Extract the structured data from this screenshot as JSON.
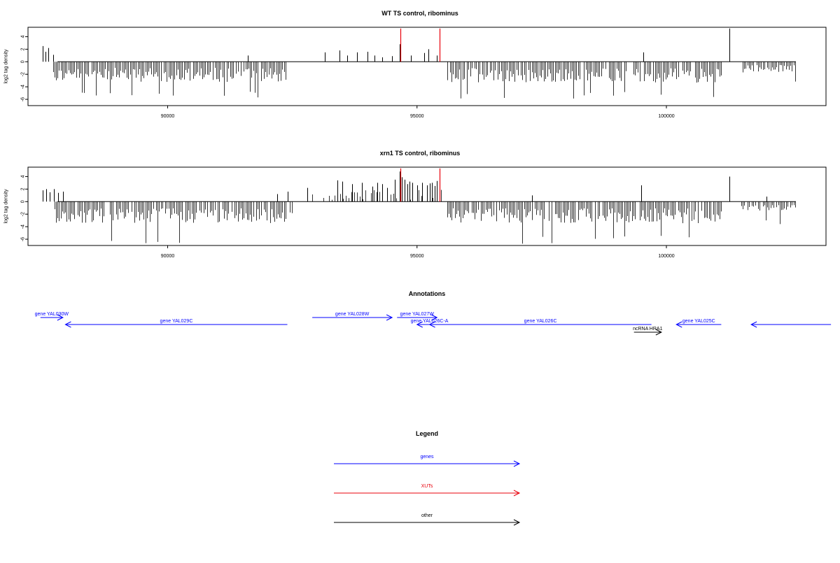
{
  "chart_data": [
    {
      "type": "bar",
      "title": "WT TS control, ribominus",
      "ylabel": "log2 tag density",
      "xlabel": "",
      "xlim": [
        87200,
        103200
      ],
      "ylim": [
        -7,
        5.5
      ],
      "x_ticks": [
        90000,
        95000,
        100000
      ],
      "y_ticks": [
        4,
        2,
        0,
        -2,
        -4,
        -6
      ],
      "grid": false,
      "series": [
        {
          "color": "#000000",
          "pos_x": [
            87500,
            87550,
            87600,
            87700,
            93150,
            93450,
            93600,
            93800,
            94000,
            94150,
            94500,
            94650,
            94880,
            95150,
            95230,
            95400,
            99540,
            101270,
            91600,
            94300
          ],
          "pos_y": [
            2.5,
            1.6,
            2.2,
            1.1,
            1.5,
            1.8,
            1.0,
            1.5,
            1.6,
            1.0,
            0.9,
            2.8,
            1.0,
            1.4,
            2.0,
            1.0,
            1.5,
            5.3,
            1.0,
            0.7
          ]
        },
        {
          "color": "#e8000b",
          "name": "",
          "pos_x": [
            94660,
            95450
          ],
          "pos_y": [
            5.3,
            5.3
          ]
        }
      ],
      "neg_regions": [
        [
          87700,
          92400,
          -2.8,
          -5.8
        ],
        [
          95600,
          101100,
          -2.9,
          -5.9
        ],
        [
          101500,
          102600,
          -1.5,
          -3.5
        ]
      ]
    },
    {
      "type": "bar",
      "title": "xrn1 TS control, ribominus",
      "ylabel": "log2 tag density",
      "xlabel": "",
      "xlim": [
        87200,
        103200
      ],
      "ylim": [
        -7,
        5.5
      ],
      "x_ticks": [
        90000,
        95000,
        100000
      ],
      "y_ticks": [
        4,
        2,
        0,
        -2,
        -4,
        -6
      ],
      "grid": false,
      "series": [
        {
          "color": "#000000",
          "pos_x": [
            87500,
            87560,
            87640,
            87720,
            87800,
            87900,
            92200,
            92400,
            92400,
            92800,
            93400,
            93500,
            93700,
            93900,
            94100,
            94200,
            94300,
            94400,
            94550,
            94650,
            94700,
            94750,
            94800,
            94850,
            94900,
            95000,
            95100,
            95200,
            95250,
            95300,
            95350,
            95400,
            95450,
            97300,
            99500,
            101270,
            102000
          ],
          "pos_y": [
            1.8,
            2.0,
            1.5,
            2.0,
            1.4,
            1.6,
            1.2,
            1.0,
            1.6,
            2.2,
            3.4,
            3.2,
            2.8,
            3.0,
            2.4,
            3.0,
            2.8,
            2.2,
            3.5,
            4.8,
            3.9,
            3.5,
            2.8,
            3.2,
            3.0,
            2.6,
            3.0,
            2.6,
            2.9,
            3.0,
            2.5,
            3.3,
            1.8,
            1.0,
            2.6,
            4.0,
            0.8
          ]
        },
        {
          "color": "#e8000b",
          "name": "",
          "pos_x": [
            94660,
            95450
          ],
          "pos_y": [
            5.3,
            5.3
          ]
        }
      ],
      "neg_regions": [
        [
          87700,
          92500,
          -3.0,
          -6.8
        ],
        [
          95600,
          101100,
          -3.0,
          -6.8
        ],
        [
          101500,
          102600,
          -1.4,
          -3.6
        ]
      ]
    }
  ],
  "annotations": {
    "title": "Annotations",
    "xlim": [
      87200,
      103200
    ],
    "features": [
      {
        "label": "gene YAL030W",
        "start": 87450,
        "end": 87900,
        "strand": "+",
        "row": 0,
        "color": "#0000ff"
      },
      {
        "label": "gene YAL029C",
        "start": 87950,
        "end": 92400,
        "strand": "-",
        "row": 1,
        "color": "#0000ff"
      },
      {
        "label": "gene YAL028W",
        "start": 92900,
        "end": 94500,
        "strand": "+",
        "row": 0,
        "color": "#0000ff"
      },
      {
        "label": "gene YAL027W",
        "start": 94600,
        "end": 95400,
        "strand": "+",
        "row": 0,
        "color": "#0000ff"
      },
      {
        "label": "gene YAL026C-A",
        "start": 95000,
        "end": 95500,
        "strand": "-",
        "row": 1,
        "color": "#0000ff"
      },
      {
        "label": "gene YAL026C",
        "start": 95250,
        "end": 99700,
        "strand": "-",
        "row": 1,
        "color": "#0000ff"
      },
      {
        "label": "ncRNA HRA1",
        "start": 99350,
        "end": 99900,
        "strand": "+",
        "row": 2,
        "color": "#000000"
      },
      {
        "label": "gene YAL025C",
        "start": 100200,
        "end": 101100,
        "strand": "-",
        "row": 1,
        "color": "#0000ff"
      },
      {
        "label": "",
        "start": 101700,
        "end": 103300,
        "strand": "-",
        "row": 1,
        "color": "#0000ff"
      }
    ]
  },
  "legend": {
    "title": "Legend",
    "items": [
      {
        "label": "genes",
        "color": "#0000ff"
      },
      {
        "label": "XUTs",
        "color": "#e8000b"
      },
      {
        "label": "other",
        "color": "#000000"
      }
    ]
  }
}
